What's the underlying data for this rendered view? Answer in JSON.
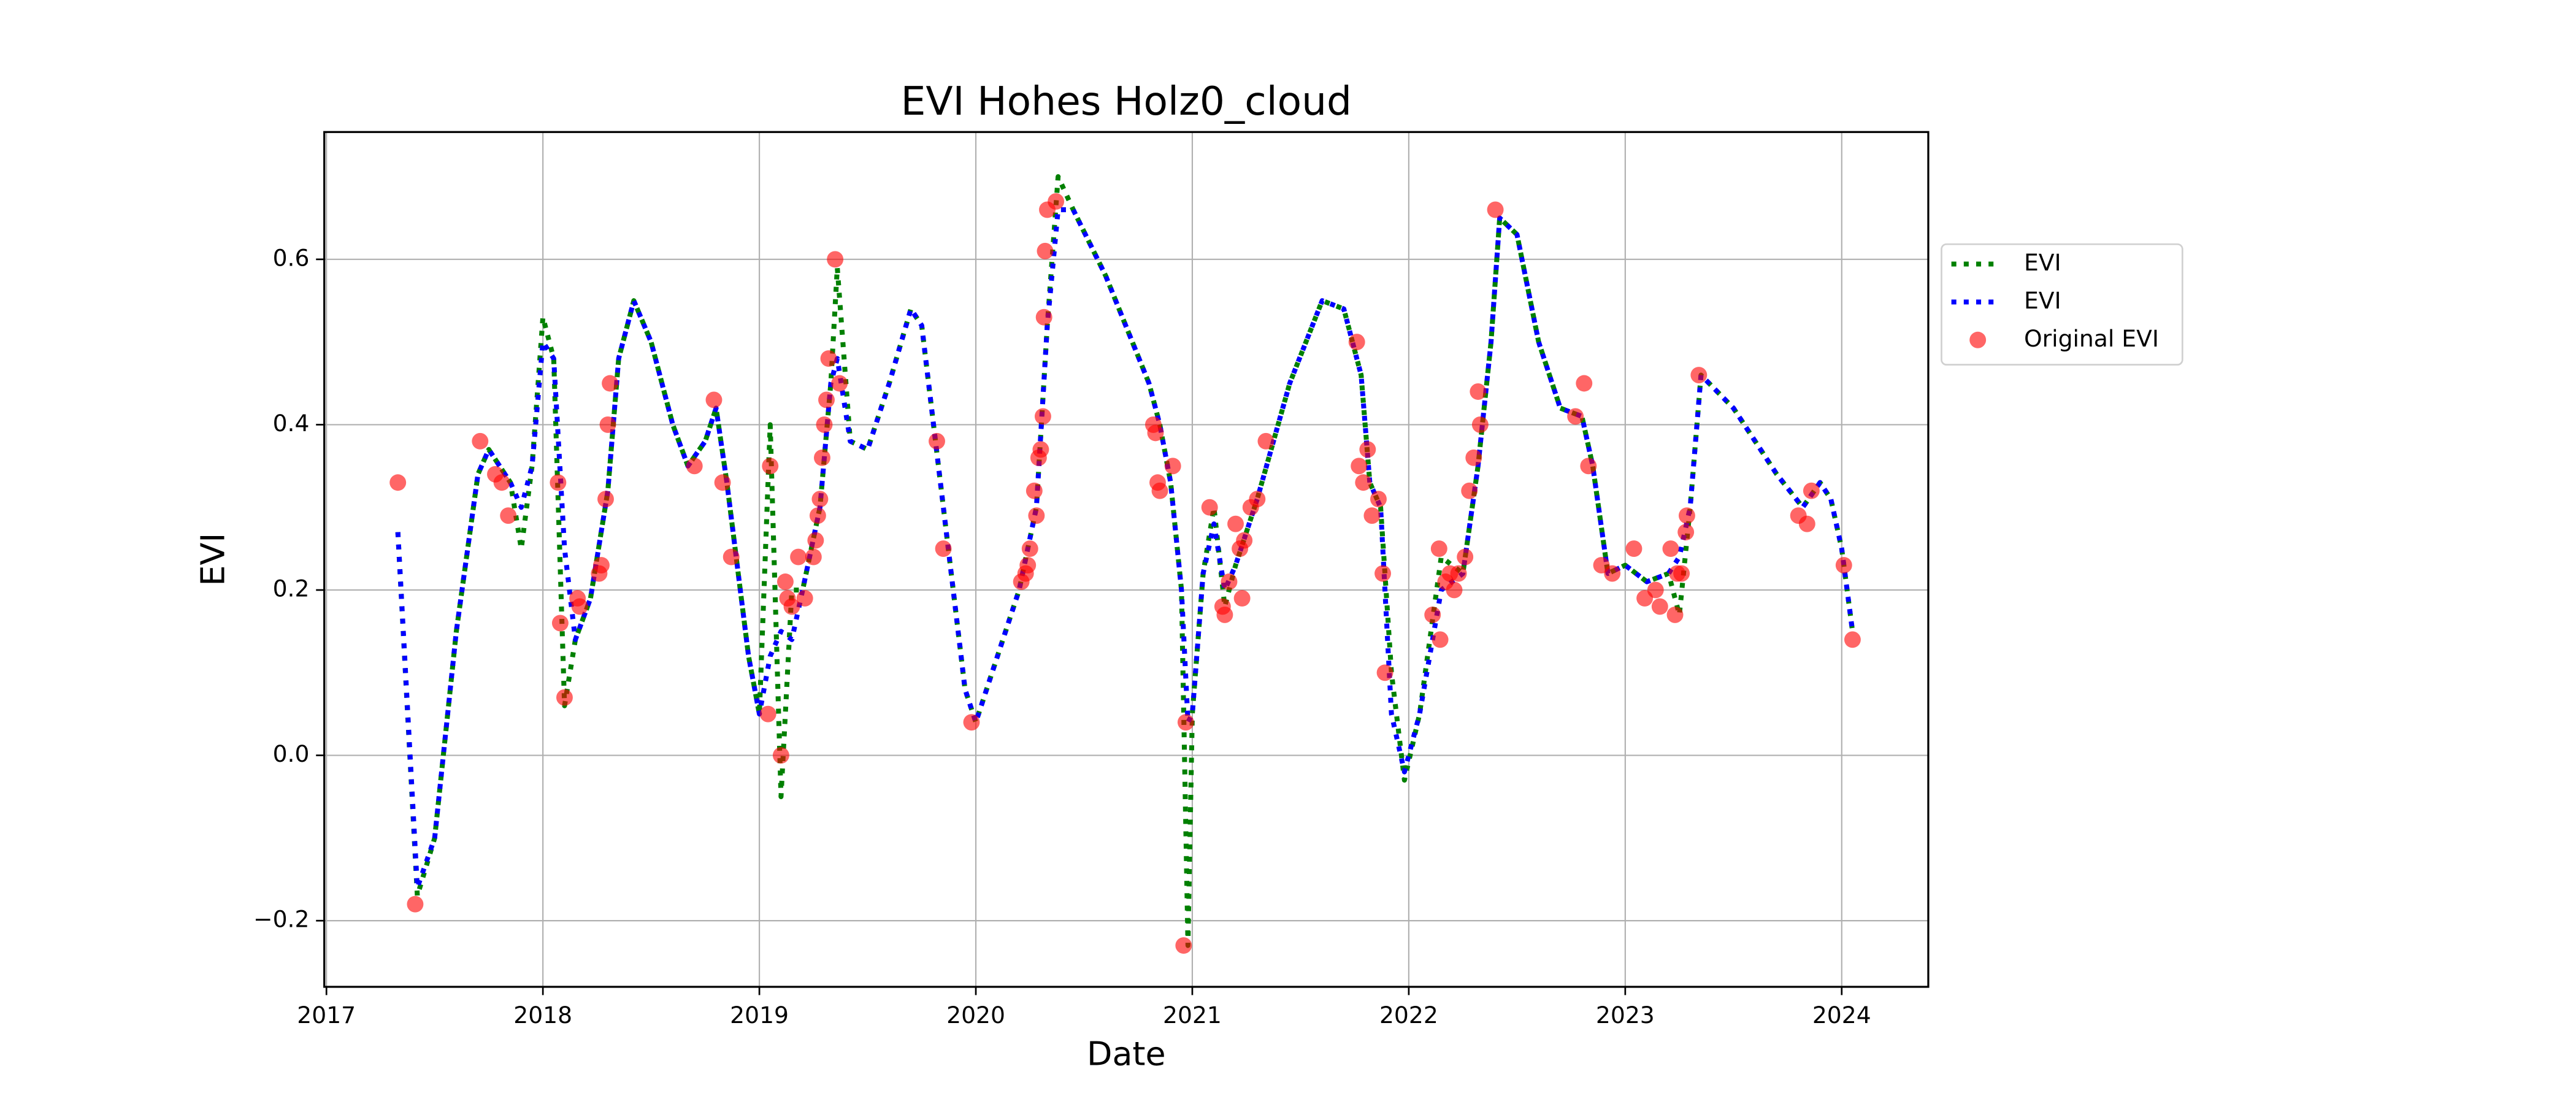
{
  "chart_data": {
    "type": "line",
    "title": "EVI Hohes Holz0_cloud",
    "xlabel": "Date",
    "ylabel": "EVI",
    "xlim": [
      2016.99,
      2024.4
    ],
    "ylim": [
      -0.28,
      0.754
    ],
    "xticks": [
      2017,
      2018,
      2019,
      2020,
      2021,
      2022,
      2023,
      2024
    ],
    "yticks": [
      {
        "value": -0.2,
        "label": "−0.2"
      },
      {
        "value": 0,
        "label": "0.0"
      },
      0.2,
      0.4,
      0.6
    ],
    "grid": true,
    "legend": "outside right",
    "x": [
      2017.33,
      2017.42,
      2017.5,
      2017.6,
      2017.7,
      2017.75,
      2017.85,
      2017.9,
      2017.95,
      2018.0,
      2018.05,
      2018.1,
      2018.15,
      2018.22,
      2018.3,
      2018.35,
      2018.42,
      2018.5,
      2018.6,
      2018.67,
      2018.75,
      2018.8,
      2018.85,
      2018.95,
      2019.0,
      2019.05,
      2019.1,
      2019.15,
      2019.2,
      2019.28,
      2019.33,
      2019.36,
      2019.42,
      2019.5,
      2019.6,
      2019.7,
      2019.75,
      2019.85,
      2019.95,
      2020.0,
      2020.1,
      2020.2,
      2020.28,
      2020.33,
      2020.38,
      2020.45,
      2020.6,
      2020.8,
      2020.85,
      2020.9,
      2020.95,
      2020.98,
      2021.0,
      2021.05,
      2021.1,
      2021.15,
      2021.2,
      2021.3,
      2021.45,
      2021.6,
      2021.7,
      2021.78,
      2021.82,
      2021.87,
      2021.92,
      2021.98,
      2022.05,
      2022.15,
      2022.25,
      2022.32,
      2022.38,
      2022.42,
      2022.5,
      2022.6,
      2022.7,
      2022.8,
      2022.85,
      2022.92,
      2023.0,
      2023.1,
      2023.2,
      2023.25,
      2023.3,
      2023.35,
      2023.5,
      2023.7,
      2023.82,
      2023.9,
      2023.95,
      2024.0,
      2024.05
    ],
    "series": [
      {
        "name": "EVI",
        "color": "#008000",
        "style": "dotted",
        "values": [
          0.27,
          -0.17,
          -0.1,
          0.15,
          0.34,
          0.37,
          0.33,
          0.25,
          0.35,
          0.53,
          0.48,
          0.06,
          0.14,
          0.19,
          0.32,
          0.48,
          0.55,
          0.5,
          0.4,
          0.35,
          0.38,
          0.42,
          0.33,
          0.12,
          0.05,
          0.4,
          -0.05,
          0.2,
          0.2,
          0.3,
          0.45,
          0.59,
          0.38,
          0.37,
          0.45,
          0.54,
          0.52,
          0.3,
          0.08,
          0.04,
          0.12,
          0.2,
          0.3,
          0.52,
          0.7,
          0.66,
          0.58,
          0.45,
          0.4,
          0.33,
          0.2,
          -0.23,
          0.05,
          0.22,
          0.3,
          0.18,
          0.23,
          0.31,
          0.45,
          0.55,
          0.54,
          0.46,
          0.33,
          0.3,
          0.1,
          -0.03,
          0.05,
          0.24,
          0.22,
          0.35,
          0.5,
          0.65,
          0.63,
          0.5,
          0.42,
          0.41,
          0.35,
          0.22,
          0.23,
          0.21,
          0.22,
          0.17,
          0.3,
          0.46,
          0.42,
          0.34,
          0.3,
          0.33,
          0.31,
          0.25,
          0.15
        ]
      },
      {
        "name": "EVI",
        "color": "#0000ff",
        "style": "dotted",
        "values": [
          0.27,
          -0.16,
          -0.1,
          0.15,
          0.34,
          0.37,
          0.33,
          0.3,
          0.35,
          0.5,
          0.48,
          0.25,
          0.14,
          0.19,
          0.32,
          0.48,
          0.55,
          0.5,
          0.4,
          0.35,
          0.38,
          0.42,
          0.33,
          0.12,
          0.05,
          0.12,
          0.15,
          0.14,
          0.2,
          0.3,
          0.45,
          0.48,
          0.38,
          0.37,
          0.45,
          0.54,
          0.52,
          0.3,
          0.08,
          0.04,
          0.12,
          0.2,
          0.3,
          0.52,
          0.66,
          0.66,
          0.58,
          0.45,
          0.4,
          0.33,
          0.2,
          0.04,
          0.05,
          0.22,
          0.28,
          0.2,
          0.23,
          0.31,
          0.45,
          0.55,
          0.54,
          0.46,
          0.33,
          0.3,
          0.05,
          -0.02,
          0.05,
          0.2,
          0.22,
          0.35,
          0.5,
          0.65,
          0.63,
          0.5,
          0.42,
          0.41,
          0.35,
          0.22,
          0.23,
          0.21,
          0.22,
          0.24,
          0.3,
          0.46,
          0.42,
          0.34,
          0.3,
          0.33,
          0.31,
          0.25,
          0.15
        ]
      },
      {
        "name": "Original EVI",
        "color": "#ff0000",
        "type": "scatter",
        "x": [
          2017.33,
          2017.41,
          2017.71,
          2017.78,
          2017.81,
          2017.84,
          2018.07,
          2018.08,
          2018.1,
          2018.16,
          2018.17,
          2018.26,
          2018.27,
          2018.29,
          2018.3,
          2018.31,
          2018.7,
          2018.79,
          2018.83,
          2018.87,
          2019.04,
          2019.05,
          2019.1,
          2019.12,
          2019.13,
          2019.15,
          2019.18,
          2019.21,
          2019.25,
          2019.26,
          2019.27,
          2019.28,
          2019.29,
          2019.3,
          2019.31,
          2019.32,
          2019.35,
          2019.37,
          2019.82,
          2019.85,
          2019.98,
          2020.21,
          2020.23,
          2020.24,
          2020.25,
          2020.27,
          2020.28,
          2020.29,
          2020.3,
          2020.31,
          2020.315,
          2020.32,
          2020.33,
          2020.37,
          2020.82,
          2020.83,
          2020.84,
          2020.85,
          2020.91,
          2020.96,
          2020.97,
          2021.08,
          2021.14,
          2021.15,
          2021.17,
          2021.2,
          2021.22,
          2021.23,
          2021.24,
          2021.27,
          2021.3,
          2021.34,
          2021.76,
          2021.77,
          2021.79,
          2021.81,
          2021.83,
          2021.86,
          2021.88,
          2021.89,
          2022.11,
          2022.14,
          2022.145,
          2022.17,
          2022.19,
          2022.21,
          2022.23,
          2022.26,
          2022.28,
          2022.3,
          2022.32,
          2022.33,
          2022.4,
          2022.77,
          2022.81,
          2022.83,
          2022.89,
          2022.94,
          2023.04,
          2023.09,
          2023.14,
          2023.16,
          2023.21,
          2023.23,
          2023.24,
          2023.26,
          2023.28,
          2023.285,
          2023.34,
          2023.8,
          2023.84,
          2023.86,
          2024.01,
          2024.05
        ],
        "values": [
          0.33,
          -0.18,
          0.38,
          0.34,
          0.33,
          0.29,
          0.33,
          0.16,
          0.07,
          0.19,
          0.18,
          0.22,
          0.23,
          0.31,
          0.4,
          0.45,
          0.35,
          0.43,
          0.33,
          0.24,
          0.05,
          0.35,
          0.0,
          0.21,
          0.19,
          0.18,
          0.24,
          0.19,
          0.24,
          0.26,
          0.29,
          0.31,
          0.36,
          0.4,
          0.43,
          0.48,
          0.6,
          0.45,
          0.38,
          0.25,
          0.04,
          0.21,
          0.22,
          0.23,
          0.25,
          0.32,
          0.29,
          0.36,
          0.37,
          0.41,
          0.53,
          0.61,
          0.66,
          0.67,
          0.4,
          0.39,
          0.33,
          0.32,
          0.35,
          -0.23,
          0.04,
          0.3,
          0.18,
          0.17,
          0.21,
          0.28,
          0.25,
          0.19,
          0.26,
          0.3,
          0.31,
          0.38,
          0.5,
          0.35,
          0.33,
          0.37,
          0.29,
          0.31,
          0.22,
          0.1,
          0.17,
          0.25,
          0.14,
          0.21,
          0.22,
          0.2,
          0.22,
          0.24,
          0.32,
          0.36,
          0.44,
          0.4,
          0.66,
          0.41,
          0.45,
          0.35,
          0.23,
          0.22,
          0.25,
          0.19,
          0.2,
          0.18,
          0.25,
          0.17,
          0.22,
          0.22,
          0.27,
          0.29,
          0.46,
          0.29,
          0.28,
          0.32,
          0.23,
          0.14
        ]
      }
    ]
  }
}
